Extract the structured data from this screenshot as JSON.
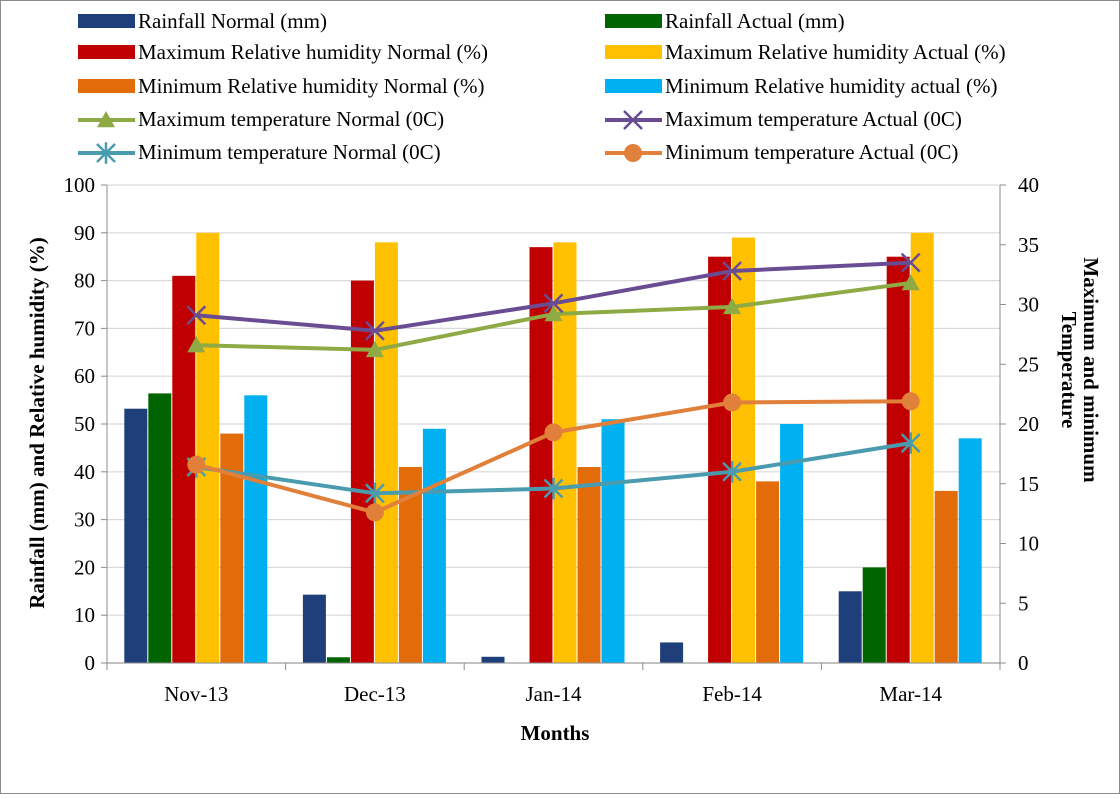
{
  "chart_data": {
    "type": "bar",
    "categories": [
      "Nov-13",
      "Dec-13",
      "Jan-14",
      "Feb-14",
      "Mar-14"
    ],
    "xlabel": "Months",
    "ylabel": "Rainfall (mm) and Relative humidity (%)",
    "y2label_line1": "Maximum and minimum",
    "y2label_line2": "Temperature",
    "ylim": [
      0,
      100
    ],
    "y2lim": [
      0,
      40
    ],
    "yticks": [
      "0",
      "10",
      "20",
      "30",
      "40",
      "50",
      "60",
      "70",
      "80",
      "90",
      "100"
    ],
    "y2ticks": [
      "0",
      "5",
      "10",
      "15",
      "20",
      "25",
      "30",
      "35",
      "40"
    ],
    "bar_series": [
      {
        "name": "Rainfall Normal (mm)",
        "color": "#1F3F7A",
        "values": [
          53.2,
          14.3,
          1.3,
          4.3,
          15.0
        ]
      },
      {
        "name": "Rainfall Actual (mm)",
        "color": "#006400",
        "values": [
          56.4,
          1.2,
          0,
          0,
          20.0
        ]
      },
      {
        "name": "Maximum Relative humidity Normal (%)",
        "color": "#C00000",
        "values": [
          81,
          80,
          87,
          85,
          85
        ]
      },
      {
        "name": "Maximum Relative humidity Actual (%)",
        "color": "#FFC000",
        "values": [
          90,
          88,
          88,
          89,
          90
        ]
      },
      {
        "name": "Minimum Relative humidity Normal (%)",
        "color": "#E36C0A",
        "values": [
          48,
          41,
          41,
          38,
          36
        ]
      },
      {
        "name": "Minimum Relative humidity actual (%)",
        "color": "#00B0F0",
        "values": [
          56,
          49,
          51,
          50,
          47
        ]
      }
    ],
    "line_series": [
      {
        "name": "Maximum temperature Normal (0C)",
        "color": "#8EAA44",
        "marker": "triangle",
        "values": [
          26.6,
          26.2,
          29.2,
          29.8,
          31.8
        ]
      },
      {
        "name": "Maximum temperature Actual (0C)",
        "color": "#6A4C93",
        "marker": "x",
        "values": [
          29.1,
          27.8,
          30.1,
          32.8,
          33.5
        ]
      },
      {
        "name": "Minimum temperature Normal (0C)",
        "color": "#4A9BAE",
        "marker": "star",
        "values": [
          16.4,
          14.2,
          14.6,
          16.0,
          18.4
        ]
      },
      {
        "name": "Minimum temperature Actual (0C)",
        "color": "#E0803A",
        "marker": "circle",
        "values": [
          16.6,
          12.6,
          19.3,
          21.8,
          21.9
        ]
      }
    ],
    "grid": true,
    "legend_position": "top"
  }
}
